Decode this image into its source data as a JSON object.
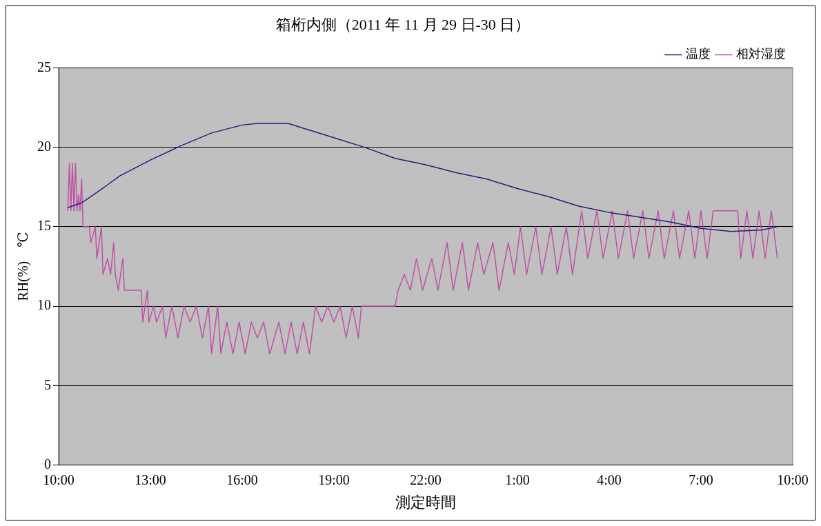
{
  "chart_data": {
    "type": "line",
    "title": "箱桁内側（2011 年 11 月 29 日-30 日）",
    "xlabel": "測定時間",
    "ylabel": "RH(%)　℃",
    "xlim": [
      "2011-11-29T10:00",
      "2011-11-30T10:00"
    ],
    "xticks": [
      {
        "value": "2011-11-29T10:00",
        "label": "10:00"
      },
      {
        "value": "2011-11-29T13:00",
        "label": "13:00"
      },
      {
        "value": "2011-11-29T16:00",
        "label": "16:00"
      },
      {
        "value": "2011-11-29T19:00",
        "label": "19:00"
      },
      {
        "value": "2011-11-29T22:00",
        "label": "22:00"
      },
      {
        "value": "2011-11-30T01:00",
        "label": "1:00"
      },
      {
        "value": "2011-11-30T04:00",
        "label": "4:00"
      },
      {
        "value": "2011-11-30T07:00",
        "label": "7:00"
      },
      {
        "value": "2011-11-30T10:00",
        "label": "10:00"
      }
    ],
    "ylim": [
      0,
      25
    ],
    "yticks": [
      0,
      5,
      10,
      15,
      20,
      25
    ],
    "grid": "y",
    "legend": "top right",
    "marker": "none",
    "line_style": "solid",
    "series": [
      {
        "name": "温度",
        "color": "#1f1f7a",
        "x": [
          "2011-11-29T10:18",
          "2011-11-29T10:45",
          "2011-11-29T11:30",
          "2011-11-29T12:00",
          "2011-11-29T13:00",
          "2011-11-29T14:00",
          "2011-11-29T15:00",
          "2011-11-29T16:00",
          "2011-11-29T16:30",
          "2011-11-29T17:30",
          "2011-11-29T18:00",
          "2011-11-29T19:00",
          "2011-11-29T20:00",
          "2011-11-29T21:00",
          "2011-11-29T22:00",
          "2011-11-29T23:00",
          "2011-11-30T00:00",
          "2011-11-30T01:00",
          "2011-11-30T02:00",
          "2011-11-30T03:00",
          "2011-11-30T04:00",
          "2011-11-30T05:00",
          "2011-11-30T06:00",
          "2011-11-30T07:00",
          "2011-11-30T08:00",
          "2011-11-30T09:00",
          "2011-11-30T09:30"
        ],
        "values": [
          16.2,
          16.5,
          17.5,
          18.2,
          19.2,
          20.1,
          20.9,
          21.4,
          21.5,
          21.5,
          21.2,
          20.6,
          20.0,
          19.3,
          18.9,
          18.4,
          18.0,
          17.4,
          16.9,
          16.3,
          15.9,
          15.6,
          15.3,
          14.9,
          14.7,
          14.8,
          15.0
        ]
      },
      {
        "name": "相対湿度",
        "color": "#c050a8",
        "x": [
          "2011-11-29T10:18",
          "2011-11-29T10:21",
          "2011-11-29T10:24",
          "2011-11-29T10:27",
          "2011-11-29T10:30",
          "2011-11-29T10:33",
          "2011-11-29T10:36",
          "2011-11-29T10:39",
          "2011-11-29T10:42",
          "2011-11-29T10:45",
          "2011-11-29T10:48",
          "2011-11-29T11:00",
          "2011-11-29T11:03",
          "2011-11-29T11:12",
          "2011-11-29T11:15",
          "2011-11-29T11:24",
          "2011-11-29T11:27",
          "2011-11-29T11:36",
          "2011-11-29T11:42",
          "2011-11-29T11:48",
          "2011-11-29T11:51",
          "2011-11-29T11:57",
          "2011-11-29T12:06",
          "2011-11-29T12:09",
          "2011-11-29T12:42",
          "2011-11-29T12:45",
          "2011-11-29T12:54",
          "2011-11-29T12:57",
          "2011-11-29T13:06",
          "2011-11-29T13:12",
          "2011-11-29T13:24",
          "2011-11-29T13:30",
          "2011-11-29T13:42",
          "2011-11-29T13:54",
          "2011-11-29T14:06",
          "2011-11-29T14:18",
          "2011-11-29T14:30",
          "2011-11-29T14:42",
          "2011-11-29T14:54",
          "2011-11-29T15:00",
          "2011-11-29T15:12",
          "2011-11-29T15:18",
          "2011-11-29T15:30",
          "2011-11-29T15:42",
          "2011-11-29T15:54",
          "2011-11-29T16:06",
          "2011-11-29T16:18",
          "2011-11-29T16:30",
          "2011-11-29T16:42",
          "2011-11-29T16:54",
          "2011-11-29T17:12",
          "2011-11-29T17:24",
          "2011-11-29T17:36",
          "2011-11-29T17:48",
          "2011-11-29T18:00",
          "2011-11-29T18:12",
          "2011-11-29T18:24",
          "2011-11-29T18:36",
          "2011-11-29T18:48",
          "2011-11-29T19:00",
          "2011-11-29T19:12",
          "2011-11-29T19:24",
          "2011-11-29T19:36",
          "2011-11-29T19:48",
          "2011-11-29T19:54",
          "2011-11-29T21:00",
          "2011-11-29T21:06",
          "2011-11-29T21:18",
          "2011-11-29T21:30",
          "2011-11-29T21:42",
          "2011-11-29T21:54",
          "2011-11-29T22:12",
          "2011-11-29T22:24",
          "2011-11-29T22:42",
          "2011-11-29T22:54",
          "2011-11-29T23:12",
          "2011-11-29T23:24",
          "2011-11-29T23:42",
          "2011-11-29T23:54",
          "2011-11-30T00:12",
          "2011-11-30T00:24",
          "2011-11-30T00:42",
          "2011-11-30T00:54",
          "2011-11-30T01:06",
          "2011-11-30T01:18",
          "2011-11-30T01:36",
          "2011-11-30T01:48",
          "2011-11-30T02:06",
          "2011-11-30T02:18",
          "2011-11-30T02:36",
          "2011-11-30T02:48",
          "2011-11-30T03:06",
          "2011-11-30T03:18",
          "2011-11-30T03:36",
          "2011-11-30T03:48",
          "2011-11-30T04:06",
          "2011-11-30T04:18",
          "2011-11-30T04:36",
          "2011-11-30T04:48",
          "2011-11-30T05:06",
          "2011-11-30T05:18",
          "2011-11-30T05:36",
          "2011-11-30T05:48",
          "2011-11-30T06:06",
          "2011-11-30T06:18",
          "2011-11-30T06:36",
          "2011-11-30T06:48",
          "2011-11-30T07:00",
          "2011-11-30T07:12",
          "2011-11-30T07:24",
          "2011-11-30T08:12",
          "2011-11-30T08:18",
          "2011-11-30T08:30",
          "2011-11-30T08:42",
          "2011-11-30T08:54",
          "2011-11-30T09:06",
          "2011-11-30T09:18",
          "2011-11-30T09:30"
        ],
        "values": [
          16,
          19,
          16,
          19,
          16,
          19,
          16,
          17,
          16,
          18,
          15,
          15,
          14,
          15,
          13,
          15,
          12,
          13,
          12,
          14,
          12,
          11,
          13,
          11,
          11,
          9,
          11,
          9,
          10,
          9,
          10,
          8,
          10,
          8,
          10,
          9,
          10,
          8,
          10,
          7,
          10,
          7,
          9,
          7,
          9,
          7,
          9,
          8,
          9,
          7,
          9,
          7,
          9,
          7,
          9,
          7,
          10,
          9,
          10,
          9,
          10,
          8,
          10,
          8,
          10,
          10,
          11,
          12,
          11,
          13,
          11,
          13,
          11,
          14,
          11,
          14,
          11,
          14,
          12,
          14,
          11,
          14,
          12,
          15,
          12,
          15,
          12,
          15,
          12,
          15,
          12,
          16,
          13,
          16,
          13,
          16,
          13,
          16,
          13,
          16,
          13,
          16,
          13,
          16,
          13,
          16,
          13,
          16,
          13,
          16,
          16,
          13,
          16,
          13,
          16,
          13,
          16,
          13
        ]
      }
    ]
  }
}
